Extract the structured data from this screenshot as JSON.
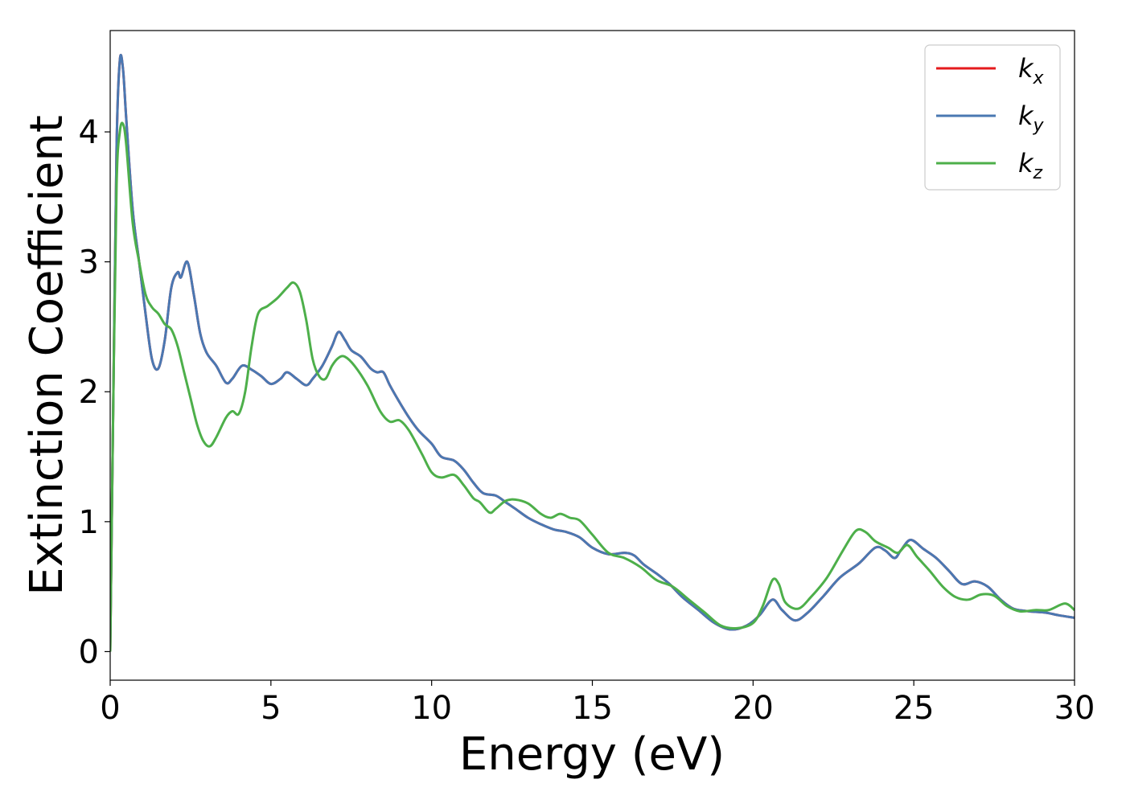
{
  "chart_data": {
    "type": "line",
    "xlabel": "Energy (eV)",
    "ylabel": "Extinction Coefficient",
    "xlim": [
      0,
      30
    ],
    "ylim": [
      -0.22,
      4.78
    ],
    "xticks": [
      0,
      5,
      10,
      15,
      20,
      25,
      30
    ],
    "yticks": [
      0,
      1,
      2,
      3,
      4
    ],
    "grid": false,
    "legend_position": "top-right",
    "series": [
      {
        "name": "k_x",
        "label_main": "k",
        "label_sub": "x",
        "color": "#e41a1c",
        "points": [
          [
            0,
            0
          ],
          [
            0.1,
            2.0
          ],
          [
            0.2,
            3.9
          ],
          [
            0.3,
            4.55
          ],
          [
            0.4,
            4.48
          ],
          [
            0.5,
            4.1
          ],
          [
            0.7,
            3.4
          ],
          [
            0.9,
            3.0
          ],
          [
            1.1,
            2.6
          ],
          [
            1.3,
            2.25
          ],
          [
            1.5,
            2.18
          ],
          [
            1.7,
            2.4
          ],
          [
            1.9,
            2.8
          ],
          [
            2.1,
            2.92
          ],
          [
            2.2,
            2.88
          ],
          [
            2.4,
            3.0
          ],
          [
            2.6,
            2.75
          ],
          [
            2.8,
            2.45
          ],
          [
            3.0,
            2.3
          ],
          [
            3.3,
            2.2
          ],
          [
            3.6,
            2.07
          ],
          [
            3.8,
            2.1
          ],
          [
            4.1,
            2.2
          ],
          [
            4.4,
            2.17
          ],
          [
            4.7,
            2.12
          ],
          [
            5.0,
            2.06
          ],
          [
            5.3,
            2.1
          ],
          [
            5.5,
            2.15
          ],
          [
            5.8,
            2.1
          ],
          [
            6.1,
            2.05
          ],
          [
            6.3,
            2.1
          ],
          [
            6.6,
            2.2
          ],
          [
            6.9,
            2.35
          ],
          [
            7.1,
            2.46
          ],
          [
            7.3,
            2.4
          ],
          [
            7.5,
            2.32
          ],
          [
            7.8,
            2.27
          ],
          [
            8.1,
            2.18
          ],
          [
            8.3,
            2.15
          ],
          [
            8.5,
            2.15
          ],
          [
            8.7,
            2.05
          ],
          [
            9.0,
            1.92
          ],
          [
            9.3,
            1.8
          ],
          [
            9.6,
            1.7
          ],
          [
            10.0,
            1.6
          ],
          [
            10.3,
            1.5
          ],
          [
            10.7,
            1.47
          ],
          [
            11.0,
            1.4
          ],
          [
            11.3,
            1.3
          ],
          [
            11.6,
            1.22
          ],
          [
            12.0,
            1.2
          ],
          [
            12.3,
            1.15
          ],
          [
            12.6,
            1.1
          ],
          [
            13.0,
            1.03
          ],
          [
            13.4,
            0.98
          ],
          [
            13.8,
            0.94
          ],
          [
            14.2,
            0.92
          ],
          [
            14.6,
            0.88
          ],
          [
            15.0,
            0.8
          ],
          [
            15.5,
            0.75
          ],
          [
            16.0,
            0.76
          ],
          [
            16.3,
            0.74
          ],
          [
            16.6,
            0.67
          ],
          [
            17.0,
            0.6
          ],
          [
            17.4,
            0.52
          ],
          [
            17.8,
            0.42
          ],
          [
            18.3,
            0.32
          ],
          [
            18.8,
            0.22
          ],
          [
            19.3,
            0.17
          ],
          [
            19.8,
            0.2
          ],
          [
            20.2,
            0.28
          ],
          [
            20.6,
            0.4
          ],
          [
            20.9,
            0.32
          ],
          [
            21.3,
            0.24
          ],
          [
            21.7,
            0.3
          ],
          [
            22.2,
            0.43
          ],
          [
            22.7,
            0.57
          ],
          [
            23.3,
            0.68
          ],
          [
            23.8,
            0.8
          ],
          [
            24.1,
            0.78
          ],
          [
            24.4,
            0.72
          ],
          [
            24.6,
            0.78
          ],
          [
            24.9,
            0.86
          ],
          [
            25.3,
            0.79
          ],
          [
            25.7,
            0.72
          ],
          [
            26.1,
            0.62
          ],
          [
            26.5,
            0.52
          ],
          [
            26.9,
            0.54
          ],
          [
            27.3,
            0.5
          ],
          [
            27.7,
            0.4
          ],
          [
            28.1,
            0.33
          ],
          [
            28.6,
            0.31
          ],
          [
            29.1,
            0.3
          ],
          [
            29.5,
            0.28
          ],
          [
            30.0,
            0.26
          ]
        ]
      },
      {
        "name": "k_y",
        "label_main": "k",
        "label_sub": "y",
        "color": "#4a78b2",
        "points": [
          [
            0,
            0
          ],
          [
            0.1,
            2.0
          ],
          [
            0.2,
            3.9
          ],
          [
            0.3,
            4.55
          ],
          [
            0.4,
            4.48
          ],
          [
            0.5,
            4.1
          ],
          [
            0.7,
            3.4
          ],
          [
            0.9,
            3.0
          ],
          [
            1.1,
            2.6
          ],
          [
            1.3,
            2.25
          ],
          [
            1.5,
            2.18
          ],
          [
            1.7,
            2.4
          ],
          [
            1.9,
            2.8
          ],
          [
            2.1,
            2.92
          ],
          [
            2.2,
            2.88
          ],
          [
            2.4,
            3.0
          ],
          [
            2.6,
            2.75
          ],
          [
            2.8,
            2.45
          ],
          [
            3.0,
            2.3
          ],
          [
            3.3,
            2.2
          ],
          [
            3.6,
            2.07
          ],
          [
            3.8,
            2.1
          ],
          [
            4.1,
            2.2
          ],
          [
            4.4,
            2.17
          ],
          [
            4.7,
            2.12
          ],
          [
            5.0,
            2.06
          ],
          [
            5.3,
            2.1
          ],
          [
            5.5,
            2.15
          ],
          [
            5.8,
            2.1
          ],
          [
            6.1,
            2.05
          ],
          [
            6.3,
            2.1
          ],
          [
            6.6,
            2.2
          ],
          [
            6.9,
            2.35
          ],
          [
            7.1,
            2.46
          ],
          [
            7.3,
            2.4
          ],
          [
            7.5,
            2.32
          ],
          [
            7.8,
            2.27
          ],
          [
            8.1,
            2.18
          ],
          [
            8.3,
            2.15
          ],
          [
            8.5,
            2.15
          ],
          [
            8.7,
            2.05
          ],
          [
            9.0,
            1.92
          ],
          [
            9.3,
            1.8
          ],
          [
            9.6,
            1.7
          ],
          [
            10.0,
            1.6
          ],
          [
            10.3,
            1.5
          ],
          [
            10.7,
            1.47
          ],
          [
            11.0,
            1.4
          ],
          [
            11.3,
            1.3
          ],
          [
            11.6,
            1.22
          ],
          [
            12.0,
            1.2
          ],
          [
            12.3,
            1.15
          ],
          [
            12.6,
            1.1
          ],
          [
            13.0,
            1.03
          ],
          [
            13.4,
            0.98
          ],
          [
            13.8,
            0.94
          ],
          [
            14.2,
            0.92
          ],
          [
            14.6,
            0.88
          ],
          [
            15.0,
            0.8
          ],
          [
            15.5,
            0.75
          ],
          [
            16.0,
            0.76
          ],
          [
            16.3,
            0.74
          ],
          [
            16.6,
            0.67
          ],
          [
            17.0,
            0.6
          ],
          [
            17.4,
            0.52
          ],
          [
            17.8,
            0.42
          ],
          [
            18.3,
            0.32
          ],
          [
            18.8,
            0.22
          ],
          [
            19.3,
            0.17
          ],
          [
            19.8,
            0.2
          ],
          [
            20.2,
            0.28
          ],
          [
            20.6,
            0.4
          ],
          [
            20.9,
            0.32
          ],
          [
            21.3,
            0.24
          ],
          [
            21.7,
            0.3
          ],
          [
            22.2,
            0.43
          ],
          [
            22.7,
            0.57
          ],
          [
            23.3,
            0.68
          ],
          [
            23.8,
            0.8
          ],
          [
            24.1,
            0.78
          ],
          [
            24.4,
            0.72
          ],
          [
            24.6,
            0.78
          ],
          [
            24.9,
            0.86
          ],
          [
            25.3,
            0.79
          ],
          [
            25.7,
            0.72
          ],
          [
            26.1,
            0.62
          ],
          [
            26.5,
            0.52
          ],
          [
            26.9,
            0.54
          ],
          [
            27.3,
            0.5
          ],
          [
            27.7,
            0.4
          ],
          [
            28.1,
            0.33
          ],
          [
            28.6,
            0.31
          ],
          [
            29.1,
            0.3
          ],
          [
            29.5,
            0.28
          ],
          [
            30.0,
            0.26
          ]
        ]
      },
      {
        "name": "k_z",
        "label_main": "k",
        "label_sub": "z",
        "color": "#4daf4a",
        "points": [
          [
            0,
            0
          ],
          [
            0.1,
            2.0
          ],
          [
            0.2,
            3.6
          ],
          [
            0.3,
            4.0
          ],
          [
            0.4,
            4.06
          ],
          [
            0.5,
            3.9
          ],
          [
            0.7,
            3.3
          ],
          [
            0.9,
            3.0
          ],
          [
            1.1,
            2.75
          ],
          [
            1.3,
            2.65
          ],
          [
            1.5,
            2.6
          ],
          [
            1.7,
            2.52
          ],
          [
            1.9,
            2.48
          ],
          [
            2.1,
            2.35
          ],
          [
            2.3,
            2.15
          ],
          [
            2.5,
            1.95
          ],
          [
            2.7,
            1.75
          ],
          [
            2.9,
            1.62
          ],
          [
            3.1,
            1.58
          ],
          [
            3.3,
            1.65
          ],
          [
            3.6,
            1.8
          ],
          [
            3.8,
            1.85
          ],
          [
            4.0,
            1.83
          ],
          [
            4.2,
            2.0
          ],
          [
            4.4,
            2.35
          ],
          [
            4.6,
            2.6
          ],
          [
            4.9,
            2.66
          ],
          [
            5.2,
            2.72
          ],
          [
            5.5,
            2.8
          ],
          [
            5.7,
            2.84
          ],
          [
            5.9,
            2.77
          ],
          [
            6.1,
            2.55
          ],
          [
            6.3,
            2.25
          ],
          [
            6.5,
            2.12
          ],
          [
            6.7,
            2.1
          ],
          [
            6.9,
            2.2
          ],
          [
            7.1,
            2.26
          ],
          [
            7.3,
            2.27
          ],
          [
            7.6,
            2.2
          ],
          [
            8.0,
            2.05
          ],
          [
            8.4,
            1.85
          ],
          [
            8.7,
            1.77
          ],
          [
            9.0,
            1.78
          ],
          [
            9.3,
            1.7
          ],
          [
            9.7,
            1.52
          ],
          [
            10.0,
            1.38
          ],
          [
            10.3,
            1.34
          ],
          [
            10.7,
            1.36
          ],
          [
            11.0,
            1.28
          ],
          [
            11.3,
            1.18
          ],
          [
            11.5,
            1.15
          ],
          [
            11.8,
            1.07
          ],
          [
            12.0,
            1.1
          ],
          [
            12.3,
            1.16
          ],
          [
            12.6,
            1.17
          ],
          [
            13.0,
            1.14
          ],
          [
            13.4,
            1.06
          ],
          [
            13.7,
            1.03
          ],
          [
            14.0,
            1.06
          ],
          [
            14.3,
            1.03
          ],
          [
            14.6,
            1.01
          ],
          [
            15.0,
            0.9
          ],
          [
            15.5,
            0.76
          ],
          [
            16.0,
            0.72
          ],
          [
            16.5,
            0.65
          ],
          [
            17.0,
            0.55
          ],
          [
            17.5,
            0.5
          ],
          [
            18.0,
            0.4
          ],
          [
            18.5,
            0.3
          ],
          [
            19.0,
            0.2
          ],
          [
            19.5,
            0.18
          ],
          [
            20.0,
            0.22
          ],
          [
            20.3,
            0.35
          ],
          [
            20.6,
            0.55
          ],
          [
            20.8,
            0.52
          ],
          [
            21.0,
            0.38
          ],
          [
            21.4,
            0.33
          ],
          [
            21.8,
            0.42
          ],
          [
            22.3,
            0.57
          ],
          [
            22.8,
            0.78
          ],
          [
            23.2,
            0.93
          ],
          [
            23.5,
            0.92
          ],
          [
            23.8,
            0.85
          ],
          [
            24.2,
            0.8
          ],
          [
            24.5,
            0.76
          ],
          [
            24.8,
            0.82
          ],
          [
            25.1,
            0.73
          ],
          [
            25.5,
            0.62
          ],
          [
            25.9,
            0.5
          ],
          [
            26.3,
            0.42
          ],
          [
            26.7,
            0.4
          ],
          [
            27.1,
            0.44
          ],
          [
            27.5,
            0.43
          ],
          [
            27.9,
            0.35
          ],
          [
            28.3,
            0.31
          ],
          [
            28.8,
            0.32
          ],
          [
            29.2,
            0.32
          ],
          [
            29.7,
            0.37
          ],
          [
            30.0,
            0.32
          ]
        ]
      }
    ]
  }
}
